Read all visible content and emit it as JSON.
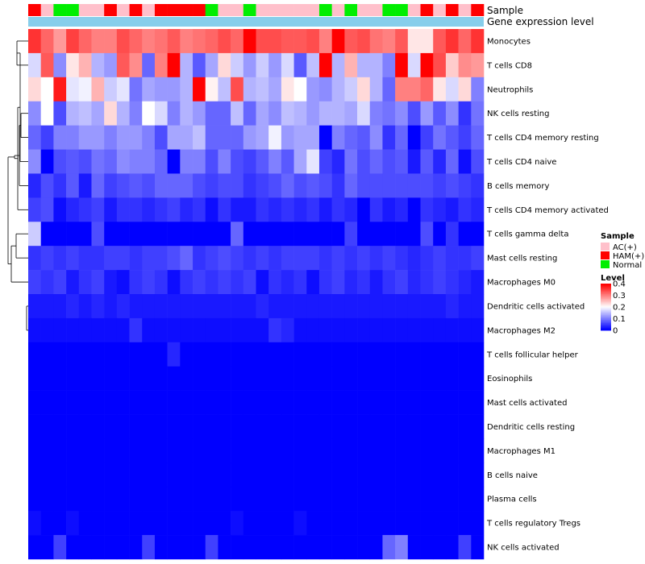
{
  "chart_data": {
    "type": "heatmap",
    "annotation_track_labels": [
      "Sample",
      "Gene expression level"
    ],
    "rows": [
      "Monocytes",
      "T cells CD8",
      "Neutrophils",
      "NK cells resting",
      "T cells CD4 memory resting",
      "T cells CD4 naive",
      "B cells memory",
      "T cells CD4 memory activated",
      "T cells gamma delta",
      "Mast cells resting",
      "Macrophages M0",
      "Dendritic cells activated",
      "Macrophages M2",
      "T cells follicular helper",
      "Eosinophils",
      "Mast cells activated",
      "Dendritic cells resting",
      "Macrophages M1",
      "B cells naive",
      "Plasma cells",
      "T cells regulatory  Tregs",
      "NK cells activated"
    ],
    "sample_groups": [
      "HAM(+)",
      "AC(+)",
      "Normal",
      "Normal",
      "AC(+)",
      "AC(+)",
      "HAM(+)",
      "AC(+)",
      "HAM(+)",
      "AC(+)",
      "HAM(+)",
      "HAM(+)",
      "HAM(+)",
      "HAM(+)",
      "Normal",
      "AC(+)",
      "AC(+)",
      "Normal",
      "AC(+)",
      "AC(+)",
      "AC(+)",
      "AC(+)",
      "AC(+)",
      "Normal",
      "AC(+)",
      "Normal",
      "AC(+)",
      "AC(+)",
      "Normal",
      "Normal",
      "AC(+)",
      "HAM(+)",
      "AC(+)",
      "HAM(+)",
      "AC(+)",
      "HAM(+)"
    ],
    "values": [
      [
        0.36,
        0.32,
        0.28,
        0.35,
        0.32,
        0.3,
        0.3,
        0.34,
        0.32,
        0.3,
        0.31,
        0.33,
        0.3,
        0.31,
        0.32,
        0.34,
        0.32,
        0.4,
        0.34,
        0.34,
        0.33,
        0.33,
        0.34,
        0.3,
        0.4,
        0.33,
        0.34,
        0.31,
        0.3,
        0.33,
        0.22,
        0.22,
        0.33,
        0.36,
        0.32,
        0.36
      ],
      [
        0.17,
        0.33,
        0.11,
        0.22,
        0.26,
        0.14,
        0.12,
        0.33,
        0.29,
        0.08,
        0.3,
        0.4,
        0.14,
        0.07,
        0.13,
        0.23,
        0.16,
        0.12,
        0.16,
        0.12,
        0.17,
        0.07,
        0.15,
        0.4,
        0.14,
        0.26,
        0.14,
        0.14,
        0.1,
        0.4,
        0.17,
        0.4,
        0.34,
        0.24,
        0.29,
        0.28
      ],
      [
        0.23,
        0.2,
        0.38,
        0.18,
        0.19,
        0.26,
        0.16,
        0.18,
        0.09,
        0.13,
        0.12,
        0.12,
        0.14,
        0.4,
        0.21,
        0.15,
        0.34,
        0.14,
        0.15,
        0.13,
        0.22,
        0.2,
        0.12,
        0.11,
        0.14,
        0.16,
        0.23,
        0.14,
        0.08,
        0.3,
        0.3,
        0.32,
        0.22,
        0.17,
        0.23,
        0.1
      ],
      [
        0.11,
        0.2,
        0.06,
        0.14,
        0.15,
        0.13,
        0.23,
        0.14,
        0.1,
        0.2,
        0.17,
        0.1,
        0.14,
        0.12,
        0.08,
        0.08,
        0.15,
        0.08,
        0.13,
        0.11,
        0.15,
        0.14,
        0.12,
        0.14,
        0.14,
        0.13,
        0.17,
        0.1,
        0.09,
        0.11,
        0.06,
        0.12,
        0.07,
        0.11,
        0.04,
        0.09
      ],
      [
        0.08,
        0.05,
        0.1,
        0.1,
        0.12,
        0.12,
        0.1,
        0.12,
        0.12,
        0.1,
        0.06,
        0.13,
        0.13,
        0.15,
        0.08,
        0.08,
        0.08,
        0.12,
        0.13,
        0.19,
        0.12,
        0.13,
        0.13,
        0.0,
        0.1,
        0.08,
        0.07,
        0.11,
        0.04,
        0.08,
        0.0,
        0.05,
        0.09,
        0.07,
        0.05,
        0.08
      ],
      [
        0.11,
        0.0,
        0.06,
        0.07,
        0.06,
        0.09,
        0.08,
        0.11,
        0.1,
        0.1,
        0.08,
        0.0,
        0.1,
        0.1,
        0.06,
        0.1,
        0.06,
        0.05,
        0.07,
        0.1,
        0.07,
        0.13,
        0.18,
        0.05,
        0.03,
        0.09,
        0.06,
        0.08,
        0.06,
        0.07,
        0.02,
        0.07,
        0.03,
        0.08,
        0.01,
        0.06
      ],
      [
        0.03,
        0.06,
        0.04,
        0.07,
        0.02,
        0.08,
        0.05,
        0.06,
        0.07,
        0.06,
        0.08,
        0.08,
        0.08,
        0.06,
        0.05,
        0.06,
        0.06,
        0.04,
        0.05,
        0.06,
        0.08,
        0.06,
        0.07,
        0.06,
        0.04,
        0.08,
        0.06,
        0.06,
        0.06,
        0.06,
        0.06,
        0.06,
        0.05,
        0.06,
        0.05,
        0.04
      ],
      [
        0.05,
        0.06,
        0.01,
        0.03,
        0.04,
        0.05,
        0.02,
        0.04,
        0.04,
        0.03,
        0.04,
        0.05,
        0.03,
        0.04,
        0.01,
        0.04,
        0.02,
        0.02,
        0.04,
        0.03,
        0.04,
        0.03,
        0.04,
        0.02,
        0.04,
        0.03,
        0.0,
        0.04,
        0.02,
        0.03,
        0.0,
        0.04,
        0.03,
        0.02,
        0.04,
        0.03
      ],
      [
        0.16,
        0.0,
        0.0,
        0.0,
        0.0,
        0.06,
        0.0,
        0.0,
        0.0,
        0.0,
        0.0,
        0.0,
        0.0,
        0.0,
        0.0,
        0.0,
        0.08,
        0.0,
        0.0,
        0.0,
        0.0,
        0.0,
        0.0,
        0.0,
        0.0,
        0.05,
        0.0,
        0.0,
        0.0,
        0.0,
        0.0,
        0.06,
        0.0,
        0.04,
        0.0,
        0.0
      ],
      [
        0.04,
        0.05,
        0.04,
        0.05,
        0.04,
        0.04,
        0.05,
        0.05,
        0.04,
        0.05,
        0.05,
        0.06,
        0.08,
        0.04,
        0.05,
        0.06,
        0.05,
        0.04,
        0.05,
        0.04,
        0.05,
        0.05,
        0.05,
        0.04,
        0.05,
        0.04,
        0.05,
        0.04,
        0.05,
        0.04,
        0.03,
        0.04,
        0.05,
        0.04,
        0.04,
        0.05
      ],
      [
        0.05,
        0.04,
        0.05,
        0.02,
        0.04,
        0.05,
        0.02,
        0.01,
        0.04,
        0.05,
        0.04,
        0.01,
        0.04,
        0.05,
        0.04,
        0.05,
        0.04,
        0.05,
        0.01,
        0.04,
        0.03,
        0.04,
        0.01,
        0.04,
        0.05,
        0.03,
        0.04,
        0.02,
        0.04,
        0.05,
        0.03,
        0.04,
        0.05,
        0.04,
        0.03,
        0.02
      ],
      [
        0.02,
        0.02,
        0.02,
        0.03,
        0.02,
        0.03,
        0.02,
        0.03,
        0.02,
        0.02,
        0.02,
        0.02,
        0.02,
        0.02,
        0.02,
        0.02,
        0.02,
        0.02,
        0.03,
        0.02,
        0.02,
        0.02,
        0.02,
        0.02,
        0.02,
        0.02,
        0.02,
        0.02,
        0.02,
        0.02,
        0.02,
        0.02,
        0.02,
        0.03,
        0.02,
        0.02
      ],
      [
        0.01,
        0.01,
        0.01,
        0.01,
        0.01,
        0.01,
        0.01,
        0.01,
        0.04,
        0.01,
        0.01,
        0.01,
        0.01,
        0.01,
        0.01,
        0.01,
        0.01,
        0.01,
        0.01,
        0.04,
        0.03,
        0.01,
        0.01,
        0.01,
        0.01,
        0.01,
        0.01,
        0.01,
        0.01,
        0.01,
        0.01,
        0.01,
        0.01,
        0.01,
        0.01,
        0.01
      ],
      [
        0.0,
        0.0,
        0.0,
        0.0,
        0.0,
        0.0,
        0.0,
        0.0,
        0.0,
        0.0,
        0.0,
        0.03,
        0.0,
        0.0,
        0.0,
        0.0,
        0.0,
        0.0,
        0.0,
        0.0,
        0.0,
        0.0,
        0.0,
        0.0,
        0.0,
        0.0,
        0.0,
        0.0,
        0.0,
        0.0,
        0.0,
        0.0,
        0.0,
        0.0,
        0.0,
        0.0
      ],
      [
        0.0,
        0.0,
        0.0,
        0.0,
        0.0,
        0.0,
        0.0,
        0.0,
        0.0,
        0.0,
        0.0,
        0.0,
        0.0,
        0.0,
        0.0,
        0.0,
        0.0,
        0.0,
        0.0,
        0.0,
        0.0,
        0.0,
        0.0,
        0.0,
        0.0,
        0.0,
        0.0,
        0.0,
        0.0,
        0.0,
        0.0,
        0.0,
        0.0,
        0.0,
        0.0,
        0.0
      ],
      [
        0.0,
        0.0,
        0.0,
        0.0,
        0.0,
        0.0,
        0.0,
        0.0,
        0.0,
        0.0,
        0.0,
        0.0,
        0.0,
        0.0,
        0.0,
        0.0,
        0.0,
        0.0,
        0.0,
        0.0,
        0.0,
        0.0,
        0.0,
        0.0,
        0.0,
        0.0,
        0.0,
        0.0,
        0.0,
        0.0,
        0.0,
        0.0,
        0.0,
        0.0,
        0.0,
        0.0
      ],
      [
        0.0,
        0.0,
        0.0,
        0.0,
        0.0,
        0.0,
        0.0,
        0.0,
        0.0,
        0.0,
        0.0,
        0.0,
        0.0,
        0.0,
        0.0,
        0.0,
        0.0,
        0.0,
        0.0,
        0.0,
        0.0,
        0.0,
        0.0,
        0.0,
        0.0,
        0.0,
        0.0,
        0.0,
        0.0,
        0.0,
        0.0,
        0.0,
        0.0,
        0.0,
        0.0,
        0.0
      ],
      [
        0.0,
        0.0,
        0.0,
        0.0,
        0.0,
        0.0,
        0.0,
        0.0,
        0.0,
        0.0,
        0.0,
        0.0,
        0.0,
        0.0,
        0.0,
        0.0,
        0.0,
        0.0,
        0.0,
        0.0,
        0.0,
        0.0,
        0.0,
        0.0,
        0.0,
        0.0,
        0.0,
        0.0,
        0.0,
        0.0,
        0.0,
        0.0,
        0.0,
        0.0,
        0.0,
        0.0
      ],
      [
        0.0,
        0.0,
        0.0,
        0.0,
        0.0,
        0.0,
        0.0,
        0.0,
        0.0,
        0.0,
        0.0,
        0.0,
        0.0,
        0.0,
        0.0,
        0.0,
        0.0,
        0.0,
        0.0,
        0.0,
        0.0,
        0.0,
        0.0,
        0.0,
        0.0,
        0.0,
        0.0,
        0.0,
        0.0,
        0.0,
        0.0,
        0.0,
        0.0,
        0.0,
        0.0,
        0.0
      ],
      [
        0.0,
        0.0,
        0.0,
        0.0,
        0.0,
        0.0,
        0.0,
        0.0,
        0.0,
        0.0,
        0.0,
        0.0,
        0.0,
        0.0,
        0.0,
        0.0,
        0.0,
        0.0,
        0.0,
        0.0,
        0.0,
        0.0,
        0.0,
        0.0,
        0.0,
        0.0,
        0.0,
        0.0,
        0.0,
        0.0,
        0.0,
        0.0,
        0.0,
        0.0,
        0.0,
        0.0
      ],
      [
        0.01,
        0.0,
        0.0,
        0.01,
        0.0,
        0.0,
        0.0,
        0.0,
        0.0,
        0.0,
        0.0,
        0.0,
        0.0,
        0.0,
        0.0,
        0.0,
        0.01,
        0.0,
        0.0,
        0.0,
        0.0,
        0.01,
        0.0,
        0.0,
        0.0,
        0.0,
        0.0,
        0.0,
        0.0,
        0.0,
        0.0,
        0.0,
        0.0,
        0.0,
        0.0,
        0.0
      ],
      [
        0.0,
        0.0,
        0.05,
        0.0,
        0.0,
        0.0,
        0.0,
        0.0,
        0.0,
        0.05,
        0.0,
        0.0,
        0.0,
        0.0,
        0.05,
        0.0,
        0.0,
        0.0,
        0.0,
        0.0,
        0.0,
        0.0,
        0.0,
        0.0,
        0.0,
        0.0,
        0.0,
        0.0,
        0.08,
        0.1,
        0.0,
        0.0,
        0.0,
        0.0,
        0.05,
        0.0
      ]
    ],
    "legend": {
      "sample_title": "Sample",
      "sample_items": [
        {
          "label": "AC(+)",
          "color": "#ffc0cb"
        },
        {
          "label": "HAM(+)",
          "color": "#ff0000"
        },
        {
          "label": "Normal",
          "color": "#00ee00"
        }
      ],
      "level_title": "Level",
      "level_ticks": [
        0.4,
        0.3,
        0.2,
        0.1,
        0
      ]
    },
    "color_scale": {
      "low": "#0000ff",
      "mid": "#ffffff",
      "high": "#ff0000",
      "min": 0,
      "max": 0.4
    },
    "expression_track_color": "#87ceeb",
    "dendrogram": "row clustering (hierarchical)"
  }
}
